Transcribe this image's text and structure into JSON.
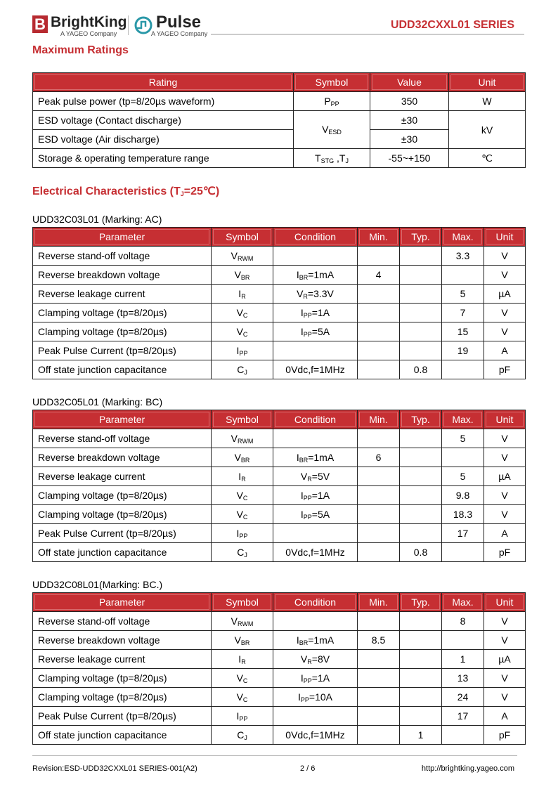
{
  "header": {
    "brand1": "BrightKing",
    "brand1_sub": "A YAGEO Company",
    "brand2": "Pulse",
    "brand2_sub": "A YAGEO Company",
    "series": "UDD32CXXL01 SERIES",
    "accent": "#c62f33"
  },
  "max_ratings": {
    "title": "Maximum Ratings",
    "headers": [
      "Rating",
      "Symbol",
      "Value",
      "Unit"
    ],
    "rows": [
      {
        "rating": "Peak pulse power (tp=8/20µs waveform)",
        "sym": "P",
        "sub": "PP",
        "value": "350",
        "unit": "W"
      },
      {
        "rating": "ESD voltage (Contact discharge)",
        "sym": "V",
        "sub": "ESD",
        "value": "±30",
        "unit": "kV"
      },
      {
        "rating": "ESD voltage (Air discharge)",
        "value": "±30"
      },
      {
        "rating": "Storage & operating temperature range",
        "sym": "T",
        "sub": "STG",
        "sym2": " ,T",
        "sub2": "J",
        "value": "-55~+150",
        "unit": "℃"
      }
    ]
  },
  "elec": {
    "title_a": "Electrical Characteristics (T",
    "title_sub": "J",
    "title_b": "=25℃)",
    "headers": [
      "Parameter",
      "Symbol",
      "Condition",
      "Min.",
      "Typ.",
      "Max.",
      "Unit"
    ],
    "tables": [
      {
        "caption": "UDD32C03L01 (Marking: AC)",
        "rows": [
          [
            "Reverse stand-off voltage",
            "V",
            "RWM",
            "",
            "",
            "",
            "",
            "3.3",
            "V"
          ],
          [
            "Reverse breakdown voltage",
            "V",
            "BR",
            "I",
            "BR",
            "=1mA",
            "4",
            "",
            "",
            "V"
          ],
          [
            "Reverse leakage current",
            "I",
            "R",
            "V",
            "R",
            "=3.3V",
            "",
            "",
            "5",
            "µA"
          ],
          [
            "Clamping voltage (tp=8/20µs)",
            "V",
            "C",
            "I",
            "PP",
            "=1A",
            "",
            "",
            "7",
            "V"
          ],
          [
            "Clamping voltage (tp=8/20µs)",
            "V",
            "C",
            "I",
            "PP",
            "=5A",
            "",
            "",
            "15",
            "V"
          ],
          [
            "Peak Pulse Current (tp=8/20µs)",
            "I",
            "PP",
            "",
            "",
            "",
            "",
            "",
            "19",
            "A"
          ],
          [
            "Off state junction capacitance",
            "C",
            "J",
            "0Vdc,f=1MHz",
            "",
            "",
            "",
            "0.8",
            "",
            "pF"
          ]
        ]
      },
      {
        "caption": "UDD32C05L01 (Marking: BC)",
        "rows": [
          [
            "Reverse stand-off voltage",
            "V",
            "RWM",
            "",
            "",
            "",
            "",
            "",
            "5",
            "V"
          ],
          [
            "Reverse breakdown voltage",
            "V",
            "BR",
            "I",
            "BR",
            "=1mA",
            "6",
            "",
            "",
            "V"
          ],
          [
            "Reverse leakage current",
            "I",
            "R",
            "V",
            "R",
            "=5V",
            "",
            "",
            "5",
            "µA"
          ],
          [
            "Clamping voltage (tp=8/20µs)",
            "V",
            "C",
            "I",
            "PP",
            "=1A",
            "",
            "",
            "9.8",
            "V"
          ],
          [
            "Clamping voltage (tp=8/20µs)",
            "V",
            "C",
            "I",
            "PP",
            "=5A",
            "",
            "",
            "18.3",
            "V"
          ],
          [
            "Peak Pulse Current (tp=8/20µs)",
            "I",
            "PP",
            "",
            "",
            "",
            "",
            "",
            "17",
            "A"
          ],
          [
            "Off state junction capacitance",
            "C",
            "J",
            "0Vdc,f=1MHz",
            "",
            "",
            "",
            "0.8",
            "",
            "pF"
          ]
        ]
      },
      {
        "caption": "UDD32C08L01(Marking: BC.)",
        "rows": [
          [
            "Reverse stand-off voltage",
            "V",
            "RWM",
            "",
            "",
            "",
            "",
            "",
            "8",
            "V"
          ],
          [
            "Reverse breakdown voltage",
            "V",
            "BR",
            "I",
            "BR",
            "=1mA",
            "8.5",
            "",
            "",
            "V"
          ],
          [
            "Reverse leakage current",
            "I",
            "R",
            "V",
            "R",
            "=8V",
            "",
            "",
            "1",
            "µA"
          ],
          [
            "Clamping voltage (tp=8/20µs)",
            "V",
            "C",
            "I",
            "PP",
            "=1A",
            "",
            "",
            "13",
            "V"
          ],
          [
            "Clamping voltage (tp=8/20µs)",
            "V",
            "C",
            "I",
            "PP",
            "=10A",
            "",
            "",
            "24",
            "V"
          ],
          [
            "Peak Pulse Current (tp=8/20µs)",
            "I",
            "PP",
            "",
            "",
            "",
            "",
            "",
            "17",
            "A"
          ],
          [
            "Off state junction capacitance",
            "C",
            "J",
            "0Vdc,f=1MHz",
            "",
            "",
            "",
            "1",
            "",
            "pF"
          ]
        ]
      }
    ]
  },
  "footer": {
    "revision": "Revision:ESD-UDD32CXXL01 SERIES-001(A2)",
    "page": "2 / 6",
    "url": "http://brightking.yageo.com"
  }
}
